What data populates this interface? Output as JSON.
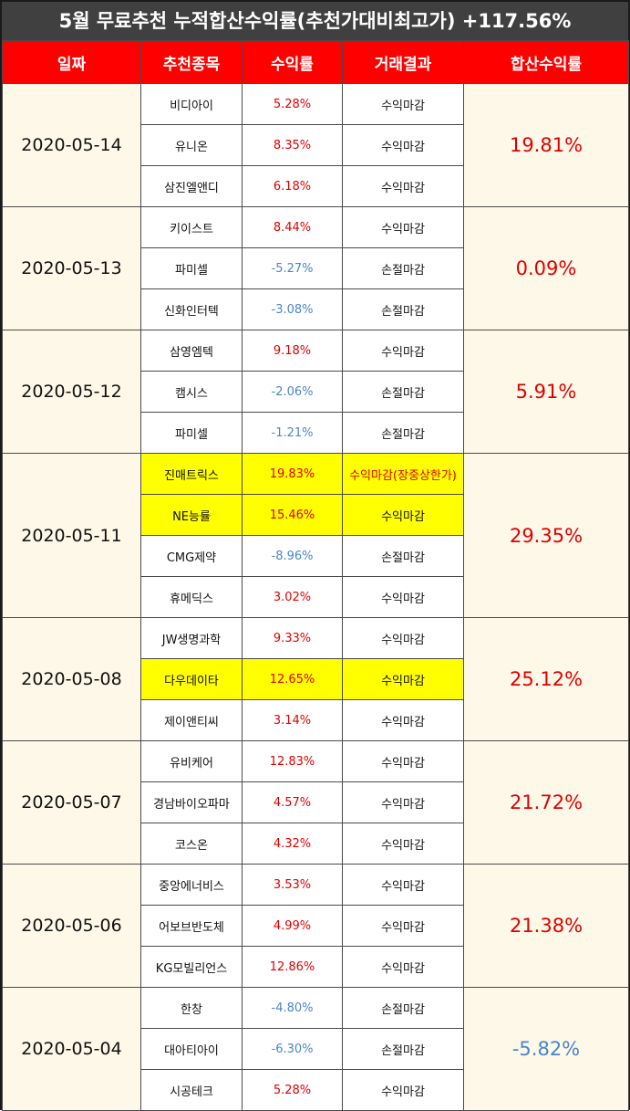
{
  "title": "5월 무료추천 누적합산수익률(추천가대비최고가) +117.56%",
  "headers": [
    "일짜",
    "추천종목",
    "수익률",
    "거래결과",
    "합산수익률"
  ],
  "groups": [
    {
      "date": "2020-05-14",
      "total": "19.81%",
      "total_sign": "pos",
      "rows": [
        {
          "stock": "비디아이",
          "ret": "5.28%",
          "sign": "pos",
          "result": "수익마감",
          "hl": false
        },
        {
          "stock": "유니온",
          "ret": "8.35%",
          "sign": "pos",
          "result": "수익마감",
          "hl": false
        },
        {
          "stock": "삼진엘앤디",
          "ret": "6.18%",
          "sign": "pos",
          "result": "수익마감",
          "hl": false
        }
      ]
    },
    {
      "date": "2020-05-13",
      "total": "0.09%",
      "total_sign": "pos",
      "rows": [
        {
          "stock": "키이스트",
          "ret": "8.44%",
          "sign": "pos",
          "result": "수익마감",
          "hl": false
        },
        {
          "stock": "파미셀",
          "ret": "-5.27%",
          "sign": "neg",
          "result": "손절마감",
          "hl": false
        },
        {
          "stock": "신화인터텍",
          "ret": "-3.08%",
          "sign": "neg",
          "result": "손절마감",
          "hl": false
        }
      ]
    },
    {
      "date": "2020-05-12",
      "total": "5.91%",
      "total_sign": "pos",
      "rows": [
        {
          "stock": "삼영엠텍",
          "ret": "9.18%",
          "sign": "pos",
          "result": "수익마감",
          "hl": false
        },
        {
          "stock": "캠시스",
          "ret": "-2.06%",
          "sign": "neg",
          "result": "손절마감",
          "hl": false
        },
        {
          "stock": "파미셀",
          "ret": "-1.21%",
          "sign": "neg",
          "result": "손절마감",
          "hl": false
        }
      ]
    },
    {
      "date": "2020-05-11",
      "total": "29.35%",
      "total_sign": "pos",
      "rows": [
        {
          "stock": "진매트릭스",
          "ret": "19.83%",
          "sign": "pos",
          "result": "수익마감(장중상한가)",
          "hl": true,
          "result_red": true
        },
        {
          "stock": "NE능률",
          "ret": "15.46%",
          "sign": "pos",
          "result": "수익마감",
          "hl": true
        },
        {
          "stock": "CMG제약",
          "ret": "-8.96%",
          "sign": "neg",
          "result": "손절마감",
          "hl": false
        },
        {
          "stock": "휴메딕스",
          "ret": "3.02%",
          "sign": "pos",
          "result": "수익마감",
          "hl": false
        }
      ]
    },
    {
      "date": "2020-05-08",
      "total": "25.12%",
      "total_sign": "pos",
      "rows": [
        {
          "stock": "JW생명과학",
          "ret": "9.33%",
          "sign": "pos",
          "result": "수익마감",
          "hl": false
        },
        {
          "stock": "다우데이타",
          "ret": "12.65%",
          "sign": "pos",
          "result": "수익마감",
          "hl": true
        },
        {
          "stock": "제이앤티씨",
          "ret": "3.14%",
          "sign": "pos",
          "result": "수익마감",
          "hl": false
        }
      ]
    },
    {
      "date": "2020-05-07",
      "total": "21.72%",
      "total_sign": "pos",
      "rows": [
        {
          "stock": "유비케어",
          "ret": "12.83%",
          "sign": "pos",
          "result": "수익마감",
          "hl": false
        },
        {
          "stock": "경남바이오파마",
          "ret": "4.57%",
          "sign": "pos",
          "result": "수익마감",
          "hl": false
        },
        {
          "stock": "코스온",
          "ret": "4.32%",
          "sign": "pos",
          "result": "수익마감",
          "hl": false
        }
      ]
    },
    {
      "date": "2020-05-06",
      "total": "21.38%",
      "total_sign": "pos",
      "rows": [
        {
          "stock": "중앙에너비스",
          "ret": "3.53%",
          "sign": "pos",
          "result": "수익마감",
          "hl": false
        },
        {
          "stock": "어보브반도체",
          "ret": "4.99%",
          "sign": "pos",
          "result": "수익마감",
          "hl": false
        },
        {
          "stock": "KG모빌리언스",
          "ret": "12.86%",
          "sign": "pos",
          "result": "수익마감",
          "hl": false
        }
      ]
    },
    {
      "date": "2020-05-04",
      "total": "-5.82%",
      "total_sign": "neg",
      "rows": [
        {
          "stock": "한창",
          "ret": "-4.80%",
          "sign": "neg",
          "result": "손절마감",
          "hl": false
        },
        {
          "stock": "대아티아이",
          "ret": "-6.30%",
          "sign": "neg",
          "result": "손절마감",
          "hl": false
        },
        {
          "stock": "시공테크",
          "ret": "5.28%",
          "sign": "pos",
          "result": "수익마감",
          "hl": false
        }
      ]
    }
  ],
  "colors": {
    "header_bg": "#ff0000",
    "title_bg": "#404040",
    "positive": "#e00000",
    "negative": "#4a86c8",
    "highlight": "#ffff00",
    "date_bg": "#fdf8e8"
  }
}
